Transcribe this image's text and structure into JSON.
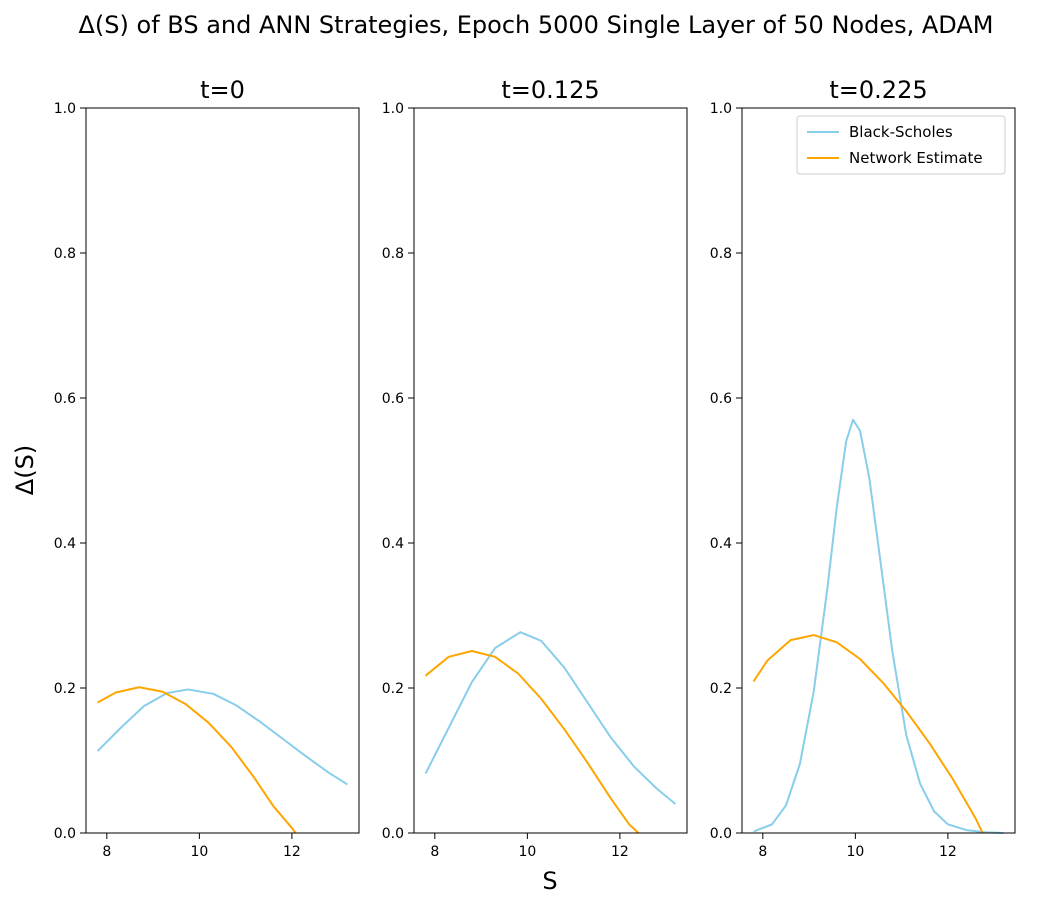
{
  "chart_data": {
    "type": "line",
    "title": "Δ(S) of BS and ANN Strategies, Epoch 5000 Single Layer of 50 Nodes, ADAM",
    "xlabel": "S",
    "ylabel": "Δ(S)",
    "xlim": [
      7.55,
      13.45
    ],
    "ylim": [
      0.0,
      1.0
    ],
    "xticks": [
      8,
      10,
      12
    ],
    "yticks": [
      0.0,
      0.2,
      0.4,
      0.6,
      0.8,
      1.0
    ],
    "xtick_labels": [
      "8",
      "10",
      "12"
    ],
    "ytick_labels": [
      "0.0",
      "0.2",
      "0.4",
      "0.6",
      "0.8",
      "1.0"
    ],
    "grid": false,
    "legend_position": "top-right",
    "colors": {
      "Black-Scholes": "#87ceeb",
      "Network Estimate": "#ffa500"
    },
    "panels": [
      {
        "title": "t=0",
        "series": [
          {
            "name": "Black-Scholes",
            "x": [
              7.8,
              8.3,
              8.8,
              9.3,
              9.75,
              10.3,
              10.8,
              11.3,
              11.8,
              12.3,
              12.8,
              13.2
            ],
            "values": [
              0.113,
              0.145,
              0.175,
              0.193,
              0.198,
              0.192,
              0.176,
              0.154,
              0.13,
              0.106,
              0.083,
              0.067
            ]
          },
          {
            "name": "Network Estimate",
            "x": [
              7.8,
              8.2,
              8.7,
              9.2,
              9.7,
              10.2,
              10.7,
              11.2,
              11.6,
              12.0,
              12.08
            ],
            "values": [
              0.18,
              0.194,
              0.201,
              0.195,
              0.178,
              0.152,
              0.118,
              0.075,
              0.037,
              0.007,
              0.0
            ]
          }
        ]
      },
      {
        "title": "t=0.125",
        "series": [
          {
            "name": "Black-Scholes",
            "x": [
              7.8,
              8.3,
              8.8,
              9.3,
              9.85,
              10.3,
              10.8,
              11.3,
              11.8,
              12.3,
              12.8,
              13.2
            ],
            "values": [
              0.082,
              0.145,
              0.208,
              0.255,
              0.277,
              0.265,
              0.228,
              0.18,
              0.132,
              0.092,
              0.061,
              0.04
            ]
          },
          {
            "name": "Network Estimate",
            "x": [
              7.8,
              8.3,
              8.8,
              9.3,
              9.8,
              10.3,
              10.8,
              11.3,
              11.8,
              12.2,
              12.4
            ],
            "values": [
              0.217,
              0.243,
              0.251,
              0.243,
              0.22,
              0.185,
              0.143,
              0.097,
              0.048,
              0.012,
              0.0
            ]
          }
        ]
      },
      {
        "title": "t=0.225",
        "series": [
          {
            "name": "Black-Scholes",
            "x": [
              7.8,
              8.2,
              8.5,
              8.8,
              9.1,
              9.4,
              9.6,
              9.8,
              9.95,
              10.1,
              10.3,
              10.5,
              10.8,
              11.1,
              11.4,
              11.7,
              12.0,
              12.4,
              12.8,
              13.2
            ],
            "values": [
              0.002,
              0.012,
              0.038,
              0.095,
              0.195,
              0.34,
              0.45,
              0.54,
              0.57,
              0.555,
              0.49,
              0.395,
              0.25,
              0.135,
              0.068,
              0.03,
              0.012,
              0.004,
              0.001,
              0.0
            ]
          },
          {
            "name": "Network Estimate",
            "x": [
              7.8,
              8.1,
              8.6,
              9.1,
              9.6,
              10.1,
              10.6,
              11.1,
              11.6,
              12.1,
              12.6,
              12.75
            ],
            "values": [
              0.209,
              0.238,
              0.266,
              0.273,
              0.263,
              0.24,
              0.207,
              0.168,
              0.124,
              0.075,
              0.02,
              0.0
            ]
          }
        ]
      }
    ]
  }
}
